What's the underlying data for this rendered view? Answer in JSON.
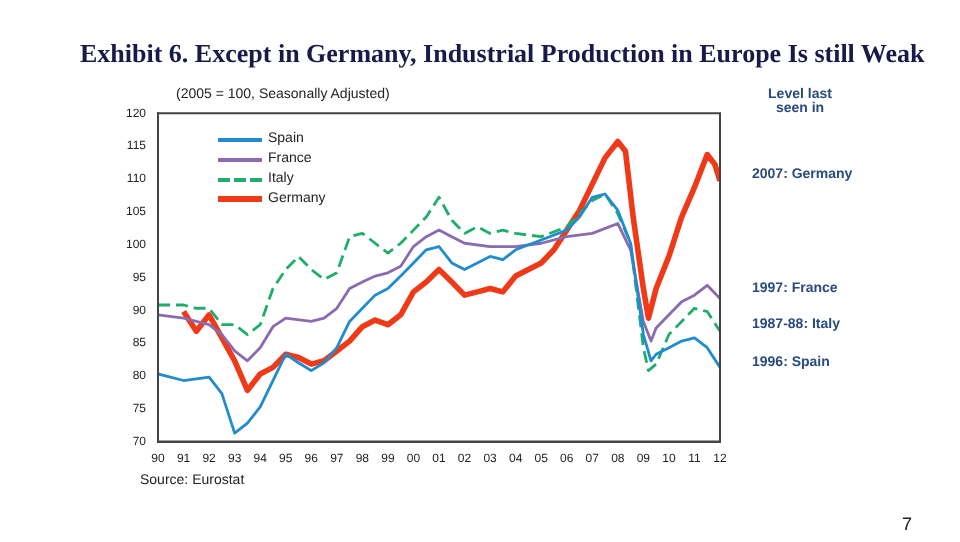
{
  "chart_data": {
    "type": "line",
    "title": "Exhibit 6.  Except in Germany, Industrial Production in Europe Is still Weak",
    "subtitle": "(2005 = 100, Seasonally Adjusted)",
    "xlim": [
      1990,
      2012
    ],
    "xticks": [
      {
        "value": 1990,
        "label": "90"
      },
      {
        "value": 1991,
        "label": "91"
      },
      {
        "value": 1992,
        "label": "92"
      },
      {
        "value": 1993,
        "label": "93"
      },
      {
        "value": 1994,
        "label": "94"
      },
      {
        "value": 1995,
        "label": "95"
      },
      {
        "value": 1996,
        "label": "96"
      },
      {
        "value": 1997,
        "label": "97"
      },
      {
        "value": 1998,
        "label": "98"
      },
      {
        "value": 1999,
        "label": "99"
      },
      {
        "value": 2000,
        "label": "00"
      },
      {
        "value": 2001,
        "label": "01"
      },
      {
        "value": 2002,
        "label": "02"
      },
      {
        "value": 2003,
        "label": "03"
      },
      {
        "value": 2004,
        "label": "04"
      },
      {
        "value": 2005,
        "label": "05"
      },
      {
        "value": 2006,
        "label": "06"
      },
      {
        "value": 2007,
        "label": "07"
      },
      {
        "value": 2008,
        "label": "08"
      },
      {
        "value": 2009,
        "label": "09"
      },
      {
        "value": 2010,
        "label": "10"
      },
      {
        "value": 2011,
        "label": "11"
      },
      {
        "value": 2012,
        "label": "12"
      }
    ],
    "ylim": [
      70,
      120
    ],
    "yticks": [
      70,
      75,
      80,
      85,
      90,
      95,
      100,
      105,
      110,
      115,
      120
    ],
    "grid": false,
    "legend": "top left",
    "marker": "none",
    "series": [
      {
        "name": "Spain",
        "color": "#1f8ccf",
        "x": [
          1990,
          1991,
          1992,
          1992.5,
          1993,
          1993.5,
          1994,
          1994.5,
          1995,
          1995.5,
          1996,
          1996.5,
          1997,
          1997.5,
          1998,
          1998.5,
          1999,
          1999.5,
          2000,
          2000.5,
          2001,
          2001.5,
          2002,
          2002.5,
          2003,
          2003.5,
          2004,
          2005,
          2006,
          2006.5,
          2007,
          2007.5,
          2008,
          2008.5,
          2009,
          2009.3,
          2009.5,
          2010,
          2010.5,
          2011,
          2011.5,
          2012
        ],
        "values": [
          80.3,
          79.3,
          79.8,
          77.3,
          71.3,
          72.8,
          75.3,
          79.3,
          83.3,
          82,
          80.8,
          82,
          84.3,
          88.3,
          90.3,
          92.3,
          93.3,
          95.2,
          97.2,
          99.2,
          99.7,
          97.2,
          96.2,
          97.2,
          98.2,
          97.7,
          99.2,
          100.7,
          102.2,
          104.2,
          107.2,
          107.7,
          105.2,
          100.2,
          86.3,
          82.3,
          83.3,
          84.3,
          85.3,
          85.8,
          84.3,
          81.3
        ]
      },
      {
        "name": "France",
        "color": "#8a6bb0",
        "x": [
          1990,
          1991,
          1992,
          1992.5,
          1993,
          1993.5,
          1994,
          1994.5,
          1995,
          1996,
          1996.5,
          1997,
          1997.5,
          1998,
          1998.5,
          1999,
          1999.5,
          2000,
          2000.5,
          2001,
          2001.5,
          2002,
          2003,
          2004,
          2005,
          2006,
          2007,
          2008,
          2008.5,
          2009,
          2009.3,
          2009.5,
          2010,
          2010.5,
          2011,
          2011.5,
          2012
        ],
        "values": [
          89.3,
          88.8,
          87.8,
          86.3,
          83.8,
          82.3,
          84.3,
          87.5,
          88.8,
          88.3,
          88.8,
          90.3,
          93.3,
          94.3,
          95.2,
          95.7,
          96.7,
          99.7,
          101.2,
          102.2,
          101.2,
          100.2,
          99.7,
          99.7,
          100.2,
          101.2,
          101.7,
          103.2,
          99.2,
          88.3,
          85.3,
          87.3,
          89.3,
          91.3,
          92.3,
          93.8,
          91.8
        ]
      },
      {
        "name": "Italy",
        "color": "#1fae6a",
        "line_style": "dashed",
        "x": [
          1990,
          1991,
          1991.5,
          1992,
          1992.5,
          1993,
          1993.5,
          1994,
          1994.5,
          1995,
          1995.5,
          1996,
          1996.5,
          1997,
          1997.5,
          1998,
          1998.5,
          1999,
          1999.5,
          2000,
          2000.5,
          2001,
          2001.5,
          2002,
          2002.5,
          2003,
          2003.5,
          2004,
          2005,
          2006,
          2007,
          2007.5,
          2008,
          2008.5,
          2009,
          2009.2,
          2009.5,
          2010,
          2010.5,
          2011,
          2011.5,
          2012
        ],
        "values": [
          90.8,
          90.8,
          90.3,
          90.3,
          87.8,
          87.8,
          86.3,
          87.8,
          93.3,
          96.2,
          98.2,
          96.2,
          94.7,
          95.7,
          101.2,
          101.7,
          100.2,
          98.7,
          100.2,
          102.2,
          104.2,
          107.2,
          103.7,
          101.7,
          102.7,
          101.7,
          102.2,
          101.7,
          101.2,
          102.7,
          106.7,
          107.7,
          104.7,
          100.2,
          84.3,
          80.8,
          81.8,
          86.3,
          88.3,
          90.3,
          89.8,
          86.8
        ]
      },
      {
        "name": "Germany",
        "color": "#f03a17",
        "x": [
          1991,
          1991.5,
          1992,
          1992.5,
          1993,
          1993.5,
          1994,
          1994.5,
          1995,
          1995.5,
          1996,
          1996.5,
          1997,
          1997.5,
          1998,
          1998.5,
          1999,
          1999.5,
          2000,
          2000.5,
          2001,
          2001.5,
          2002,
          2002.5,
          2003,
          2003.5,
          2004,
          2004.5,
          2005,
          2005.5,
          2006,
          2006.5,
          2007,
          2007.5,
          2008,
          2008.3,
          2008.6,
          2009,
          2009.2,
          2009.5,
          2010,
          2010.5,
          2011,
          2011.5,
          2011.8,
          2012
        ],
        "values": [
          89.8,
          86.8,
          89.3,
          85.8,
          82.3,
          77.8,
          80.3,
          81.3,
          83.3,
          82.8,
          81.8,
          82.3,
          83.8,
          85.3,
          87.5,
          88.5,
          87.8,
          89.3,
          92.8,
          94.3,
          96.2,
          94.3,
          92.3,
          92.8,
          93.3,
          92.8,
          95.2,
          96.2,
          97.2,
          99.2,
          102.2,
          105.2,
          109.2,
          113.2,
          115.7,
          114.2,
          104.2,
          93.3,
          88.8,
          93.3,
          98.2,
          104.2,
          108.7,
          113.7,
          112.2,
          109.7
        ]
      }
    ],
    "annotations": [
      "Level last seen in",
      "2007: Germany",
      "1997: France",
      "1987-88: Italy",
      "1996: Spain",
      "Source: Eurostat",
      "7"
    ]
  }
}
